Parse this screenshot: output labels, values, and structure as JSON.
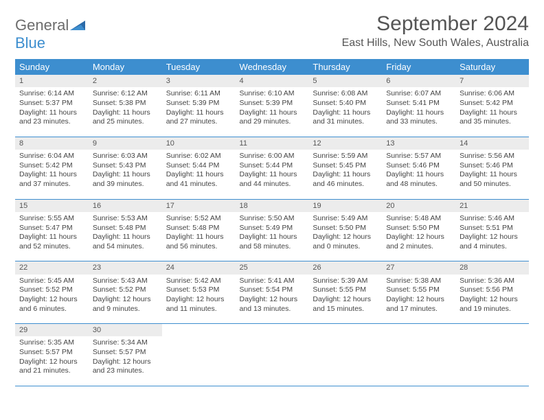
{
  "brand": {
    "part1": "General",
    "part2": "Blue"
  },
  "title": "September 2024",
  "location": "East Hills, New South Wales, Australia",
  "colors": {
    "header_bg": "#3d8ecf",
    "header_text": "#ffffff",
    "daynum_bg": "#ececec",
    "border": "#3d8ecf",
    "text": "#444444",
    "brand_gray": "#6c6c6c",
    "brand_blue": "#3d8ecf"
  },
  "weekdays": [
    "Sunday",
    "Monday",
    "Tuesday",
    "Wednesday",
    "Thursday",
    "Friday",
    "Saturday"
  ],
  "weeks": [
    [
      {
        "n": "1",
        "sr": "Sunrise: 6:14 AM",
        "ss": "Sunset: 5:37 PM",
        "d1": "Daylight: 11 hours",
        "d2": "and 23 minutes."
      },
      {
        "n": "2",
        "sr": "Sunrise: 6:12 AM",
        "ss": "Sunset: 5:38 PM",
        "d1": "Daylight: 11 hours",
        "d2": "and 25 minutes."
      },
      {
        "n": "3",
        "sr": "Sunrise: 6:11 AM",
        "ss": "Sunset: 5:39 PM",
        "d1": "Daylight: 11 hours",
        "d2": "and 27 minutes."
      },
      {
        "n": "4",
        "sr": "Sunrise: 6:10 AM",
        "ss": "Sunset: 5:39 PM",
        "d1": "Daylight: 11 hours",
        "d2": "and 29 minutes."
      },
      {
        "n": "5",
        "sr": "Sunrise: 6:08 AM",
        "ss": "Sunset: 5:40 PM",
        "d1": "Daylight: 11 hours",
        "d2": "and 31 minutes."
      },
      {
        "n": "6",
        "sr": "Sunrise: 6:07 AM",
        "ss": "Sunset: 5:41 PM",
        "d1": "Daylight: 11 hours",
        "d2": "and 33 minutes."
      },
      {
        "n": "7",
        "sr": "Sunrise: 6:06 AM",
        "ss": "Sunset: 5:42 PM",
        "d1": "Daylight: 11 hours",
        "d2": "and 35 minutes."
      }
    ],
    [
      {
        "n": "8",
        "sr": "Sunrise: 6:04 AM",
        "ss": "Sunset: 5:42 PM",
        "d1": "Daylight: 11 hours",
        "d2": "and 37 minutes."
      },
      {
        "n": "9",
        "sr": "Sunrise: 6:03 AM",
        "ss": "Sunset: 5:43 PM",
        "d1": "Daylight: 11 hours",
        "d2": "and 39 minutes."
      },
      {
        "n": "10",
        "sr": "Sunrise: 6:02 AM",
        "ss": "Sunset: 5:44 PM",
        "d1": "Daylight: 11 hours",
        "d2": "and 41 minutes."
      },
      {
        "n": "11",
        "sr": "Sunrise: 6:00 AM",
        "ss": "Sunset: 5:44 PM",
        "d1": "Daylight: 11 hours",
        "d2": "and 44 minutes."
      },
      {
        "n": "12",
        "sr": "Sunrise: 5:59 AM",
        "ss": "Sunset: 5:45 PM",
        "d1": "Daylight: 11 hours",
        "d2": "and 46 minutes."
      },
      {
        "n": "13",
        "sr": "Sunrise: 5:57 AM",
        "ss": "Sunset: 5:46 PM",
        "d1": "Daylight: 11 hours",
        "d2": "and 48 minutes."
      },
      {
        "n": "14",
        "sr": "Sunrise: 5:56 AM",
        "ss": "Sunset: 5:46 PM",
        "d1": "Daylight: 11 hours",
        "d2": "and 50 minutes."
      }
    ],
    [
      {
        "n": "15",
        "sr": "Sunrise: 5:55 AM",
        "ss": "Sunset: 5:47 PM",
        "d1": "Daylight: 11 hours",
        "d2": "and 52 minutes."
      },
      {
        "n": "16",
        "sr": "Sunrise: 5:53 AM",
        "ss": "Sunset: 5:48 PM",
        "d1": "Daylight: 11 hours",
        "d2": "and 54 minutes."
      },
      {
        "n": "17",
        "sr": "Sunrise: 5:52 AM",
        "ss": "Sunset: 5:48 PM",
        "d1": "Daylight: 11 hours",
        "d2": "and 56 minutes."
      },
      {
        "n": "18",
        "sr": "Sunrise: 5:50 AM",
        "ss": "Sunset: 5:49 PM",
        "d1": "Daylight: 11 hours",
        "d2": "and 58 minutes."
      },
      {
        "n": "19",
        "sr": "Sunrise: 5:49 AM",
        "ss": "Sunset: 5:50 PM",
        "d1": "Daylight: 12 hours",
        "d2": "and 0 minutes."
      },
      {
        "n": "20",
        "sr": "Sunrise: 5:48 AM",
        "ss": "Sunset: 5:50 PM",
        "d1": "Daylight: 12 hours",
        "d2": "and 2 minutes."
      },
      {
        "n": "21",
        "sr": "Sunrise: 5:46 AM",
        "ss": "Sunset: 5:51 PM",
        "d1": "Daylight: 12 hours",
        "d2": "and 4 minutes."
      }
    ],
    [
      {
        "n": "22",
        "sr": "Sunrise: 5:45 AM",
        "ss": "Sunset: 5:52 PM",
        "d1": "Daylight: 12 hours",
        "d2": "and 6 minutes."
      },
      {
        "n": "23",
        "sr": "Sunrise: 5:43 AM",
        "ss": "Sunset: 5:52 PM",
        "d1": "Daylight: 12 hours",
        "d2": "and 9 minutes."
      },
      {
        "n": "24",
        "sr": "Sunrise: 5:42 AM",
        "ss": "Sunset: 5:53 PM",
        "d1": "Daylight: 12 hours",
        "d2": "and 11 minutes."
      },
      {
        "n": "25",
        "sr": "Sunrise: 5:41 AM",
        "ss": "Sunset: 5:54 PM",
        "d1": "Daylight: 12 hours",
        "d2": "and 13 minutes."
      },
      {
        "n": "26",
        "sr": "Sunrise: 5:39 AM",
        "ss": "Sunset: 5:55 PM",
        "d1": "Daylight: 12 hours",
        "d2": "and 15 minutes."
      },
      {
        "n": "27",
        "sr": "Sunrise: 5:38 AM",
        "ss": "Sunset: 5:55 PM",
        "d1": "Daylight: 12 hours",
        "d2": "and 17 minutes."
      },
      {
        "n": "28",
        "sr": "Sunrise: 5:36 AM",
        "ss": "Sunset: 5:56 PM",
        "d1": "Daylight: 12 hours",
        "d2": "and 19 minutes."
      }
    ],
    [
      {
        "n": "29",
        "sr": "Sunrise: 5:35 AM",
        "ss": "Sunset: 5:57 PM",
        "d1": "Daylight: 12 hours",
        "d2": "and 21 minutes."
      },
      {
        "n": "30",
        "sr": "Sunrise: 5:34 AM",
        "ss": "Sunset: 5:57 PM",
        "d1": "Daylight: 12 hours",
        "d2": "and 23 minutes."
      },
      null,
      null,
      null,
      null,
      null
    ]
  ]
}
